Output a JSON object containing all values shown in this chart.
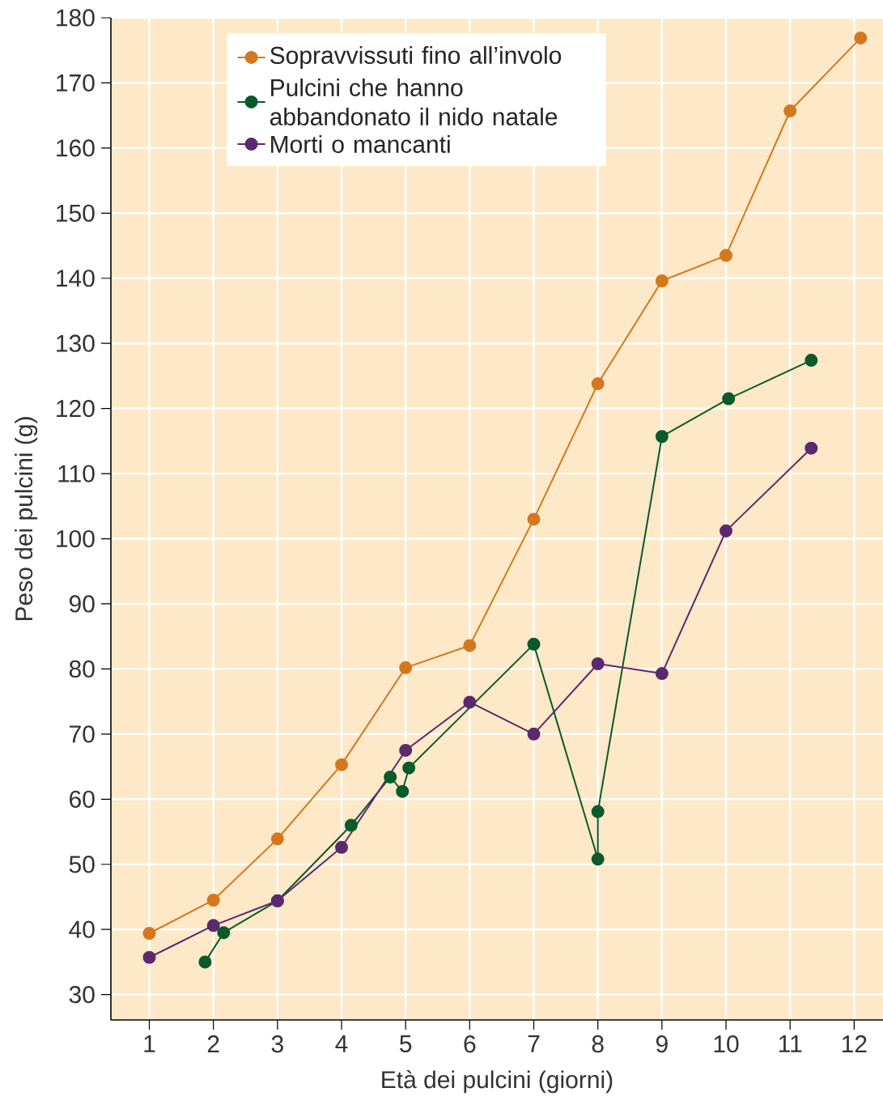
{
  "chart_data": {
    "type": "line",
    "xlabel": "Età dei pulcini (giorni)",
    "ylabel": "Peso dei pulcini (g)",
    "xlim": [
      0.4,
      12.45
    ],
    "ylim": [
      26.1,
      180
    ],
    "xticks": [
      1,
      2,
      3,
      4,
      5,
      6,
      7,
      8,
      9,
      10,
      11,
      12
    ],
    "yticks": [
      30,
      40,
      50,
      60,
      70,
      80,
      90,
      100,
      110,
      120,
      130,
      140,
      150,
      160,
      170,
      180
    ],
    "grid": true,
    "legend": "top left",
    "marker": "circle",
    "line_style": "solid",
    "series": [
      {
        "name": "Sopravvissuti fino all’involo",
        "color": "#d4781e",
        "x": [
          1,
          2,
          3,
          4,
          5,
          6,
          7,
          8,
          9,
          10,
          11,
          12.1
        ],
        "values": [
          39.4,
          44.5,
          53.9,
          65.3,
          80.2,
          83.6,
          103,
          123.8,
          139.6,
          143.5,
          165.7,
          176.9
        ]
      },
      {
        "name": "Pulcini che hanno abbandonato il nido natale",
        "color": "#0a5a2a",
        "x": [
          1.87,
          2.16,
          3,
          4.15,
          4.76,
          4.95,
          5.05,
          7,
          8,
          8,
          9,
          10.04,
          11.33
        ],
        "values": [
          35.0,
          39.5,
          44.4,
          56.0,
          63.4,
          61.2,
          64.8,
          83.8,
          50.8,
          58.1,
          115.7,
          121.5,
          127.4
        ]
      },
      {
        "name": "Morti o mancanti",
        "color": "#5a2a6e",
        "x": [
          1,
          2,
          3,
          4,
          5,
          6,
          7,
          8,
          9,
          10,
          11.33
        ],
        "values": [
          35.7,
          40.6,
          44.4,
          52.6,
          67.5,
          74.9,
          70.0,
          80.8,
          79.3,
          101.2,
          113.9
        ]
      }
    ]
  }
}
